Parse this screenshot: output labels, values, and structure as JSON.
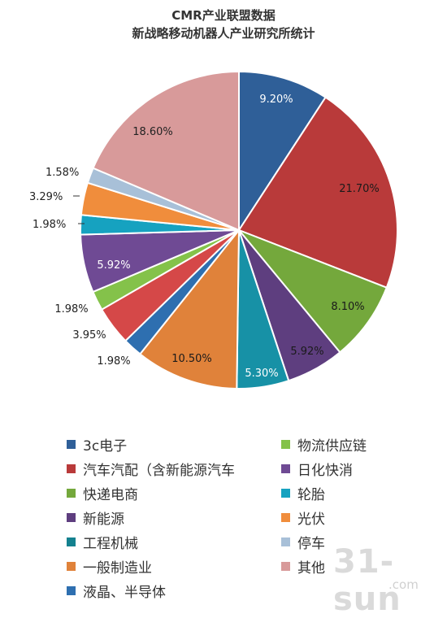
{
  "chart_data": {
    "type": "pie",
    "title": "CMR产业联盟数据",
    "subtitle": "新战略移动机器人产业研究所统计",
    "legend_placement": "bottom",
    "slices": [
      {
        "label": "3c电子",
        "value": 9.2,
        "value_label": "9.20%",
        "color": "#2f5f98"
      },
      {
        "label": "汽车汽配（含新能源汽车",
        "value": 21.7,
        "value_label": "21.70%",
        "color": "#b93a3a"
      },
      {
        "label": "物流供应链",
        "value": 8.1,
        "value_label": "8.10%",
        "color": "#74a83c"
      },
      {
        "label": "日化快消",
        "value": 5.92,
        "value_label": "5.92%",
        "color": "#5e3e7f"
      },
      {
        "label": "轮胎",
        "value": 5.3,
        "value_label": "5.30%",
        "color": "#1791a6"
      },
      {
        "label": "一般制造业",
        "value": 10.5,
        "value_label": "10.50%",
        "color": "#e0823a"
      },
      {
        "label": "液晶、半导体",
        "value": 1.98,
        "value_label": "1.98%",
        "color": "#2e6fb0"
      },
      {
        "label": "汽车汽配（含新能源汽车",
        "value": 3.95,
        "value_label": "3.95%",
        "color": "#d54848"
      },
      {
        "label": "快递电商",
        "value": 1.98,
        "value_label": "1.98%",
        "color": "#84c24a"
      },
      {
        "label": "新能源",
        "value": 5.92,
        "value_label": "5.92%",
        "color": "#6f4a94"
      },
      {
        "label": "工程机械",
        "value": 1.98,
        "value_label": "1.98%",
        "color": "#16a2c0"
      },
      {
        "label": "光伏",
        "value": 3.29,
        "value_label": "3.29%",
        "color": "#f08d3c"
      },
      {
        "label": "停车",
        "value": 1.58,
        "value_label": "1.58%",
        "color": "#a8c0d8"
      },
      {
        "label": "其他",
        "value": 18.6,
        "value_label": "18.60%",
        "color": "#d89a9a"
      }
    ]
  },
  "legend": {
    "left": [
      {
        "label": "3c电子",
        "color": "#2f5f98"
      },
      {
        "label": "汽车汽配（含新能源汽车",
        "color": "#b93a3a"
      },
      {
        "label": "快递电商",
        "color": "#74a83c"
      },
      {
        "label": "新能源",
        "color": "#5e3e7f"
      },
      {
        "label": "工程机械",
        "color": "#14818f"
      },
      {
        "label": "一般制造业",
        "color": "#e0823a"
      },
      {
        "label": "液晶、半导体",
        "color": "#2e6fb0"
      }
    ],
    "right": [
      {
        "label": "物流供应链",
        "color": "#84c24a"
      },
      {
        "label": "日化快消",
        "color": "#6f4a94"
      },
      {
        "label": "轮胎",
        "color": "#16a2c0"
      },
      {
        "label": "光伏",
        "color": "#f08d3c"
      },
      {
        "label": "停车",
        "color": "#a8c0d8"
      },
      {
        "label": "其他",
        "color": "#d89a9a"
      }
    ]
  },
  "watermark": {
    "main": "31-sun",
    "sub": ".com"
  }
}
